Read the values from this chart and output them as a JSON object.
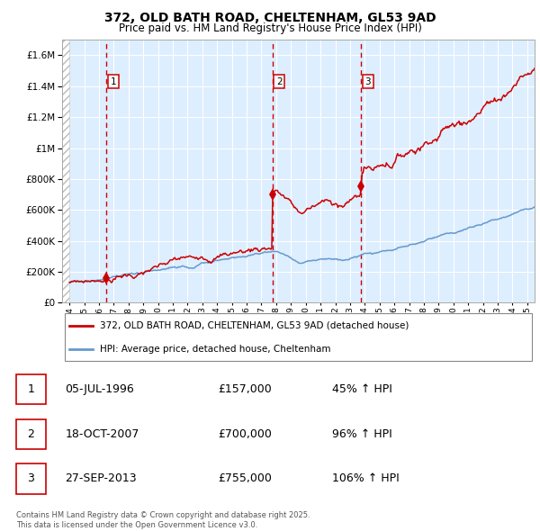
{
  "title": "372, OLD BATH ROAD, CHELTENHAM, GL53 9AD",
  "subtitle": "Price paid vs. HM Land Registry's House Price Index (HPI)",
  "red_label": "372, OLD BATH ROAD, CHELTENHAM, GL53 9AD (detached house)",
  "blue_label": "HPI: Average price, detached house, Cheltenham",
  "sale_points": [
    {
      "year": 1996.5,
      "price": 157000,
      "label": "1"
    },
    {
      "year": 2007.75,
      "price": 700000,
      "label": "2"
    },
    {
      "year": 2013.75,
      "price": 755000,
      "label": "3"
    }
  ],
  "sale_lines": [
    1996.5,
    2007.75,
    2013.75
  ],
  "table_rows": [
    [
      "1",
      "05-JUL-1996",
      "£157,000",
      "45% ↑ HPI"
    ],
    [
      "2",
      "18-OCT-2007",
      "£700,000",
      "96% ↑ HPI"
    ],
    [
      "3",
      "27-SEP-2013",
      "£755,000",
      "106% ↑ HPI"
    ]
  ],
  "footnote": "Contains HM Land Registry data © Crown copyright and database right 2025.\nThis data is licensed under the Open Government Licence v3.0.",
  "ylim": [
    0,
    1700000
  ],
  "xlim_start": 1993.5,
  "xlim_end": 2025.5,
  "red_color": "#cc0000",
  "blue_color": "#6699cc",
  "hatch_color": "#bbbbbb",
  "bg_color": "#ddeeff",
  "grid_color": "#ffffff"
}
